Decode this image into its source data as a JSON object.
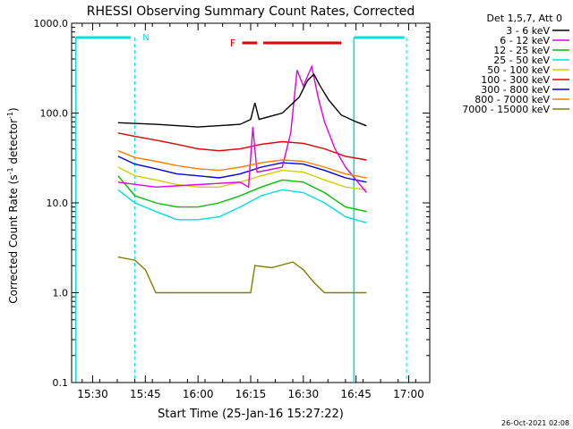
{
  "chart_data": {
    "type": "line",
    "title": "RHESSI Observing Summary Count Rates, Corrected",
    "xlabel": "Start Time (25-Jan-16 15:27:22)",
    "ylabel_main": "Corrected Count Rate (s",
    "ylabel_sup1": "-1",
    "ylabel_mid": " detector",
    "ylabel_sup2": "-1",
    "ylabel_end": ")",
    "yscale": "log",
    "ylim": [
      0.1,
      1000
    ],
    "xlim_min": [
      15.4,
      17.1
    ],
    "x_ticks": [
      {
        "v": 15.5,
        "label": "15:30"
      },
      {
        "v": 15.75,
        "label": "15:45"
      },
      {
        "v": 16.0,
        "label": "16:00"
      },
      {
        "v": 16.25,
        "label": "16:15"
      },
      {
        "v": 16.5,
        "label": "16:30"
      },
      {
        "v": 16.75,
        "label": "16:45"
      },
      {
        "v": 17.0,
        "label": "17:00"
      }
    ],
    "y_ticks": [
      {
        "v": 1000,
        "label": "1000.0"
      },
      {
        "v": 100,
        "label": "100.0"
      },
      {
        "v": 10,
        "label": "10.0"
      },
      {
        "v": 1,
        "label": "1.0"
      },
      {
        "v": 0.1,
        "label": "0.1"
      }
    ],
    "legend_title": "Det 1,5,7, Att 0",
    "series": [
      {
        "name": "3 - 6 keV",
        "color": "#000000",
        "points": [
          [
            15.62,
            78
          ],
          [
            15.8,
            75
          ],
          [
            16.0,
            70
          ],
          [
            16.2,
            75
          ],
          [
            16.25,
            85
          ],
          [
            16.27,
            130
          ],
          [
            16.29,
            85
          ],
          [
            16.4,
            100
          ],
          [
            16.48,
            150
          ],
          [
            16.52,
            230
          ],
          [
            16.55,
            270
          ],
          [
            16.58,
            200
          ],
          [
            16.62,
            140
          ],
          [
            16.68,
            95
          ],
          [
            16.75,
            80
          ],
          [
            16.8,
            72
          ]
        ]
      },
      {
        "name": "6 - 12 keV",
        "color": "#e000e0",
        "points": [
          [
            15.62,
            17
          ],
          [
            15.8,
            15
          ],
          [
            16.0,
            16
          ],
          [
            16.2,
            17
          ],
          [
            16.24,
            15
          ],
          [
            16.26,
            70
          ],
          [
            16.28,
            22
          ],
          [
            16.4,
            25
          ],
          [
            16.44,
            60
          ],
          [
            16.47,
            300
          ],
          [
            16.5,
            200
          ],
          [
            16.54,
            330
          ],
          [
            16.57,
            150
          ],
          [
            16.6,
            80
          ],
          [
            16.65,
            40
          ],
          [
            16.7,
            25
          ],
          [
            16.8,
            13
          ]
        ]
      },
      {
        "name": "12 - 25 keV",
        "color": "#00c000",
        "points": [
          [
            15.62,
            20
          ],
          [
            15.7,
            12
          ],
          [
            15.8,
            10
          ],
          [
            15.9,
            9
          ],
          [
            16.0,
            9
          ],
          [
            16.1,
            10
          ],
          [
            16.2,
            12
          ],
          [
            16.3,
            15
          ],
          [
            16.4,
            18
          ],
          [
            16.5,
            17
          ],
          [
            16.6,
            13
          ],
          [
            16.7,
            9
          ],
          [
            16.8,
            8
          ]
        ]
      },
      {
        "name": "25 - 50 keV",
        "color": "#00e0e0",
        "points": [
          [
            15.62,
            14
          ],
          [
            15.7,
            10
          ],
          [
            15.8,
            8
          ],
          [
            15.9,
            6.5
          ],
          [
            16.0,
            6.5
          ],
          [
            16.1,
            7
          ],
          [
            16.2,
            9
          ],
          [
            16.3,
            12
          ],
          [
            16.4,
            14
          ],
          [
            16.5,
            13
          ],
          [
            16.6,
            10
          ],
          [
            16.7,
            7
          ],
          [
            16.8,
            6
          ]
        ]
      },
      {
        "name": "50 - 100 keV",
        "color": "#d0d000",
        "points": [
          [
            15.62,
            25
          ],
          [
            15.7,
            20
          ],
          [
            15.8,
            18
          ],
          [
            15.9,
            16
          ],
          [
            16.0,
            15
          ],
          [
            16.1,
            15
          ],
          [
            16.2,
            17
          ],
          [
            16.3,
            20
          ],
          [
            16.4,
            23
          ],
          [
            16.5,
            22
          ],
          [
            16.6,
            18
          ],
          [
            16.7,
            15
          ],
          [
            16.8,
            14
          ]
        ]
      },
      {
        "name": "100 - 300 keV",
        "color": "#e00000",
        "points": [
          [
            15.62,
            60
          ],
          [
            15.7,
            55
          ],
          [
            15.8,
            50
          ],
          [
            15.9,
            45
          ],
          [
            16.0,
            40
          ],
          [
            16.1,
            38
          ],
          [
            16.2,
            40
          ],
          [
            16.3,
            45
          ],
          [
            16.4,
            48
          ],
          [
            16.5,
            46
          ],
          [
            16.6,
            40
          ],
          [
            16.7,
            33
          ],
          [
            16.8,
            30
          ]
        ]
      },
      {
        "name": "300 - 800 keV",
        "color": "#0000e0",
        "points": [
          [
            15.62,
            33
          ],
          [
            15.7,
            27
          ],
          [
            15.8,
            24
          ],
          [
            15.9,
            21
          ],
          [
            16.0,
            20
          ],
          [
            16.1,
            19
          ],
          [
            16.2,
            21
          ],
          [
            16.3,
            25
          ],
          [
            16.4,
            28
          ],
          [
            16.5,
            27
          ],
          [
            16.6,
            23
          ],
          [
            16.7,
            19
          ],
          [
            16.8,
            17
          ]
        ]
      },
      {
        "name": "800 - 7000 keV",
        "color": "#ff8000",
        "points": [
          [
            15.62,
            38
          ],
          [
            15.7,
            32
          ],
          [
            15.8,
            29
          ],
          [
            15.9,
            26
          ],
          [
            16.0,
            24
          ],
          [
            16.1,
            23
          ],
          [
            16.2,
            25
          ],
          [
            16.3,
            28
          ],
          [
            16.4,
            30
          ],
          [
            16.5,
            29
          ],
          [
            16.6,
            25
          ],
          [
            16.7,
            21
          ],
          [
            16.8,
            19
          ]
        ]
      },
      {
        "name": "7000 - 15000 keV",
        "color": "#808000",
        "points": [
          [
            15.62,
            2.5
          ],
          [
            15.7,
            2.3
          ],
          [
            15.75,
            1.8
          ],
          [
            15.8,
            1.0
          ],
          [
            16.0,
            1.0
          ],
          [
            16.25,
            1.0
          ],
          [
            16.27,
            2.0
          ],
          [
            16.35,
            1.9
          ],
          [
            16.45,
            2.2
          ],
          [
            16.5,
            1.8
          ],
          [
            16.55,
            1.3
          ],
          [
            16.6,
            1.0
          ],
          [
            16.8,
            1.0
          ]
        ]
      }
    ],
    "annotations": {
      "night_label": "N",
      "flare_label": "F",
      "footer_date": "26-Oct-2021 02:08"
    }
  }
}
